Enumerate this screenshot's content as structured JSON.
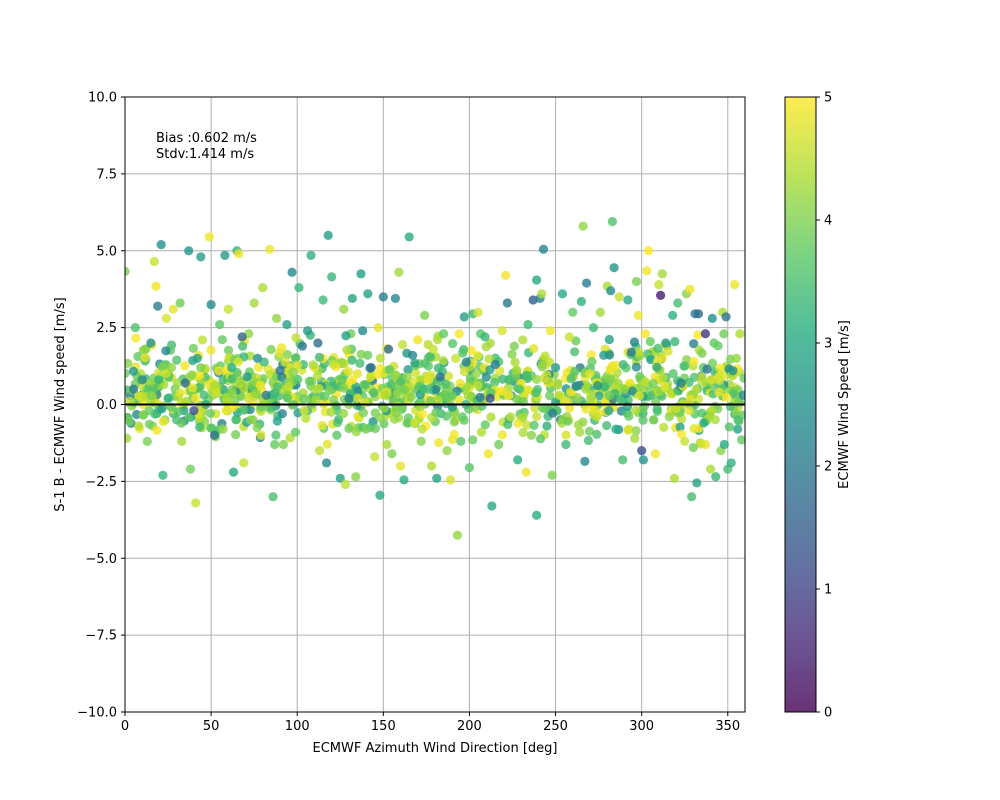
{
  "chart_data": {
    "type": "scatter",
    "xlabel": "ECMWF Azimuth Wind Direction [deg]",
    "ylabel": "S-1 B - ECMWF Wind speed [m/s]",
    "xlim": [
      0,
      360
    ],
    "ylim": [
      -10,
      10
    ],
    "xticks": [
      0,
      50,
      100,
      150,
      200,
      250,
      300,
      350
    ],
    "yticks": [
      -10.0,
      -7.5,
      -5.0,
      -2.5,
      0.0,
      2.5,
      5.0,
      7.5,
      10.0
    ],
    "xtick_labels": [
      "0",
      "50",
      "100",
      "150",
      "200",
      "250",
      "300",
      "350"
    ],
    "ytick_labels": [
      "−10.0",
      "−7.5",
      "−5.0",
      "−2.5",
      "0.0",
      "2.5",
      "5.0",
      "7.5",
      "10.0"
    ],
    "grid": true,
    "reference_line_y": 0,
    "annotation": [
      "Bias :0.602 m/s",
      "Stdv:1.414 m/s"
    ],
    "colorbar": {
      "label": "ECMWF Wind Speed [m/s]",
      "colormap": "viridis",
      "range": [
        0,
        5
      ],
      "ticks": [
        "0",
        "1",
        "2",
        "3",
        "4",
        "5"
      ]
    },
    "points": [
      [
        0,
        4.33,
        4.0
      ],
      [
        1,
        -1.1,
        4.3
      ],
      [
        3,
        0.1,
        4.5
      ],
      [
        5,
        0.5,
        2.1
      ],
      [
        6,
        2.5,
        3.6
      ],
      [
        8,
        -0.7,
        4.4
      ],
      [
        10,
        0.8,
        2.3
      ],
      [
        12,
        1.8,
        4.1
      ],
      [
        14,
        -0.2,
        3.8
      ],
      [
        15,
        2.0,
        2.5
      ],
      [
        17,
        4.65,
        4.6
      ],
      [
        18,
        3.85,
        4.9
      ],
      [
        19,
        3.2,
        2.2
      ],
      [
        21,
        5.2,
        2.5
      ],
      [
        22,
        -2.3,
        3.3
      ],
      [
        24,
        2.8,
        4.7
      ],
      [
        25,
        0.2,
        3.2
      ],
      [
        27,
        1.2,
        4.2
      ],
      [
        28,
        3.1,
        4.8
      ],
      [
        30,
        -0.5,
        3.5
      ],
      [
        32,
        3.3,
        3.9
      ],
      [
        33,
        -1.2,
        4.3
      ],
      [
        35,
        0.7,
        1.8
      ],
      [
        37,
        5.0,
        2.6
      ],
      [
        38,
        -2.1,
        3.9
      ],
      [
        40,
        -0.2,
        1.2
      ],
      [
        41,
        -3.2,
        4.6
      ],
      [
        42,
        1.5,
        2.9
      ],
      [
        44,
        4.8,
        2.8
      ],
      [
        45,
        2.1,
        4.5
      ],
      [
        47,
        0.0,
        3.2
      ],
      [
        49,
        5.45,
        4.9
      ],
      [
        50,
        3.25,
        2.4
      ],
      [
        52,
        -1.0,
        1.9
      ],
      [
        53,
        0.4,
        4.6
      ],
      [
        55,
        2.6,
        3.7
      ],
      [
        57,
        -0.8,
        4.2
      ],
      [
        58,
        4.85,
        2.7
      ],
      [
        60,
        3.1,
        4.6
      ],
      [
        62,
        1.2,
        3.1
      ],
      [
        63,
        -2.2,
        3.0
      ],
      [
        65,
        5.0,
        3.3
      ],
      [
        66,
        4.9,
        4.9
      ],
      [
        68,
        2.2,
        1.6
      ],
      [
        69,
        -1.9,
        4.6
      ],
      [
        71,
        0.9,
        2.7
      ],
      [
        73,
        -0.5,
        4.1
      ],
      [
        75,
        3.3,
        4.3
      ],
      [
        77,
        1.5,
        2.4
      ],
      [
        79,
        -1.0,
        4.7
      ],
      [
        80,
        3.8,
        4.4
      ],
      [
        82,
        0.3,
        2.1
      ],
      [
        84,
        5.05,
        4.9
      ],
      [
        85,
        -0.1,
        3.5
      ],
      [
        86,
        -3.0,
        3.5
      ],
      [
        88,
        2.8,
        4.2
      ],
      [
        90,
        1.1,
        1.9
      ],
      [
        92,
        -1.3,
        4.0
      ],
      [
        94,
        2.6,
        2.9
      ],
      [
        95,
        0.6,
        4.5
      ],
      [
        97,
        4.3,
        2.4
      ],
      [
        99,
        -0.9,
        3.8
      ],
      [
        101,
        3.8,
        3.3
      ],
      [
        103,
        1.9,
        2.0
      ],
      [
        104,
        -0.2,
        4.6
      ],
      [
        106,
        2.4,
        2.7
      ],
      [
        108,
        4.85,
        3.2
      ],
      [
        110,
        0.5,
        4.3
      ],
      [
        112,
        2.0,
        1.8
      ],
      [
        113,
        -1.5,
        4.5
      ],
      [
        115,
        3.4,
        3.4
      ],
      [
        117,
        -1.9,
        2.4
      ],
      [
        118,
        5.5,
        2.8
      ],
      [
        120,
        4.15,
        3.3
      ],
      [
        121,
        1.3,
        4.6
      ],
      [
        123,
        -1.0,
        3.7
      ],
      [
        125,
        -2.4,
        2.9
      ],
      [
        127,
        3.1,
        4.2
      ],
      [
        128,
        -2.6,
        4.5
      ],
      [
        130,
        0.2,
        2.2
      ],
      [
        132,
        3.45,
        2.9
      ],
      [
        134,
        -2.35,
        4.1
      ],
      [
        135,
        1.0,
        4.8
      ],
      [
        137,
        4.25,
        2.8
      ],
      [
        138,
        2.4,
        2.4
      ],
      [
        140,
        -0.8,
        4.0
      ],
      [
        141,
        3.6,
        2.9
      ],
      [
        143,
        1.2,
        1.9
      ],
      [
        145,
        -1.7,
        4.6
      ],
      [
        147,
        2.5,
        4.8
      ],
      [
        148,
        -2.95,
        3.0
      ],
      [
        150,
        3.5,
        2.1
      ],
      [
        151,
        0.3,
        4.4
      ],
      [
        153,
        1.8,
        1.7
      ],
      [
        155,
        -1.6,
        4.0
      ],
      [
        157,
        3.45,
        2.3
      ],
      [
        159,
        4.3,
        4.3
      ],
      [
        160,
        -2.0,
        4.8
      ],
      [
        162,
        -2.45,
        3.1
      ],
      [
        164,
        0.9,
        4.2
      ],
      [
        165,
        5.45,
        3.1
      ],
      [
        167,
        1.6,
        2.3
      ],
      [
        168,
        -0.6,
        4.7
      ],
      [
        170,
        2.1,
        4.9
      ],
      [
        172,
        -1.2,
        4.1
      ],
      [
        174,
        2.9,
        4.0
      ],
      [
        176,
        0.5,
        3.5
      ],
      [
        178,
        -2.0,
        4.4
      ],
      [
        179,
        1.8,
        4.6
      ],
      [
        181,
        -2.4,
        2.9
      ],
      [
        183,
        0.9,
        1.8
      ],
      [
        185,
        2.3,
        3.8
      ],
      [
        187,
        -1.5,
        4.2
      ],
      [
        189,
        -2.45,
        4.7
      ],
      [
        190,
        0.3,
        3.8
      ],
      [
        192,
        1.5,
        4.6
      ],
      [
        193,
        -4.25,
        4.2
      ],
      [
        195,
        -1.2,
        3.7
      ],
      [
        197,
        2.85,
        2.8
      ],
      [
        198,
        0.0,
        3.3
      ],
      [
        200,
        -2.05,
        3.7
      ],
      [
        202,
        2.95,
        3.4
      ],
      [
        204,
        1.0,
        4.2
      ],
      [
        205,
        3.0,
        4.7
      ],
      [
        207,
        -0.9,
        4.4
      ],
      [
        209,
        2.2,
        3.3
      ],
      [
        211,
        -1.6,
        4.9
      ],
      [
        212,
        0.2,
        1.2
      ],
      [
        213,
        -3.3,
        3.0
      ],
      [
        215,
        1.3,
        2.1
      ],
      [
        217,
        -1.3,
        3.9
      ],
      [
        219,
        2.4,
        4.7
      ],
      [
        221,
        4.2,
        4.9
      ],
      [
        222,
        3.3,
        2.0
      ],
      [
        224,
        -0.4,
        4.5
      ],
      [
        226,
        1.9,
        4.0
      ],
      [
        228,
        -1.8,
        3.1
      ],
      [
        229,
        0.5,
        3.6
      ],
      [
        231,
        2.1,
        4.4
      ],
      [
        233,
        -2.2,
        4.9
      ],
      [
        234,
        2.6,
        3.4
      ],
      [
        236,
        -1.0,
        4.1
      ],
      [
        237,
        3.4,
        1.5
      ],
      [
        239,
        4.05,
        3.0
      ],
      [
        239,
        -3.6,
        3.1
      ],
      [
        241,
        3.45,
        2.2
      ],
      [
        242,
        3.6,
        4.4
      ],
      [
        243,
        5.05,
        2.3
      ],
      [
        245,
        -0.7,
        3.2
      ],
      [
        247,
        2.4,
        4.9
      ],
      [
        248,
        -2.3,
        4.0
      ],
      [
        250,
        1.2,
        2.7
      ],
      [
        252,
        0.3,
        4.5
      ],
      [
        254,
        3.6,
        3.0
      ],
      [
        256,
        -1.3,
        3.4
      ],
      [
        258,
        2.2,
        4.6
      ],
      [
        260,
        3.0,
        3.8
      ],
      [
        262,
        0.6,
        2.3
      ],
      [
        264,
        -0.9,
        4.3
      ],
      [
        265,
        3.35,
        3.2
      ],
      [
        266,
        5.8,
        4.2
      ],
      [
        267,
        -1.85,
        2.3
      ],
      [
        268,
        3.95,
        2.1
      ],
      [
        270,
        1.0,
        4.8
      ],
      [
        272,
        2.5,
        3.4
      ],
      [
        274,
        -0.4,
        4.6
      ],
      [
        276,
        3.0,
        4.3
      ],
      [
        278,
        1.6,
        2.7
      ],
      [
        280,
        3.85,
        4.4
      ],
      [
        281,
        -0.2,
        2.9
      ],
      [
        282,
        3.7,
        2.4
      ],
      [
        283,
        5.95,
        3.6
      ],
      [
        284,
        4.45,
        2.6
      ],
      [
        285,
        -0.8,
        3.1
      ],
      [
        287,
        3.5,
        4.6
      ],
      [
        289,
        -1.8,
        3.5
      ],
      [
        290,
        0.5,
        4.2
      ],
      [
        292,
        3.4,
        3.0
      ],
      [
        294,
        1.7,
        2.0
      ],
      [
        296,
        -1.1,
        4.3
      ],
      [
        297,
        4.0,
        4.0
      ],
      [
        298,
        2.9,
        4.9
      ],
      [
        300,
        -1.5,
        1.2
      ],
      [
        301,
        -1.8,
        2.6
      ],
      [
        303,
        4.35,
        4.9
      ],
      [
        304,
        5.0,
        5.0
      ],
      [
        305,
        2.05,
        3.8
      ],
      [
        307,
        -0.5,
        4.0
      ],
      [
        308,
        -1.6,
        4.9
      ],
      [
        310,
        3.9,
        4.6
      ],
      [
        311,
        3.55,
        0.4
      ],
      [
        312,
        4.25,
        4.3
      ],
      [
        314,
        2.0,
        2.7
      ],
      [
        316,
        -0.4,
        4.1
      ],
      [
        318,
        2.9,
        3.2
      ],
      [
        319,
        -2.4,
        4.4
      ],
      [
        321,
        3.3,
        3.5
      ],
      [
        323,
        0.7,
        2.2
      ],
      [
        325,
        -1.2,
        4.6
      ],
      [
        326,
        3.6,
        4.1
      ],
      [
        328,
        3.75,
        4.9
      ],
      [
        329,
        -3.0,
        3.5
      ],
      [
        330,
        -1.4,
        3.9
      ],
      [
        331,
        2.95,
        2.0
      ],
      [
        332,
        -2.55,
        2.9
      ],
      [
        333,
        2.95,
        1.8
      ],
      [
        335,
        0.9,
        4.6
      ],
      [
        336,
        -0.6,
        3.0
      ],
      [
        337,
        2.3,
        0.8
      ],
      [
        338,
        1.15,
        2.0
      ],
      [
        340,
        -2.1,
        4.4
      ],
      [
        341,
        2.8,
        2.5
      ],
      [
        342,
        2.0,
        3.8
      ],
      [
        343,
        -2.35,
        3.3
      ],
      [
        345,
        0.4,
        4.8
      ],
      [
        346,
        -1.5,
        4.1
      ],
      [
        347,
        3.0,
        4.4
      ],
      [
        348,
        -1.3,
        3.0
      ],
      [
        349,
        2.85,
        1.9
      ],
      [
        350,
        -2.1,
        3.5
      ],
      [
        352,
        -1.9,
        3.2
      ],
      [
        353,
        1.1,
        2.6
      ],
      [
        354,
        3.9,
        4.9
      ],
      [
        355,
        1.5,
        4.2
      ],
      [
        356,
        -0.5,
        3.6
      ],
      [
        357,
        2.3,
        4.4
      ],
      [
        358,
        -1.15,
        3.8
      ],
      [
        359,
        0.3,
        2.4
      ]
    ],
    "dense_band": {
      "description": "A large cloud of additional points between y≈-1.5 and y≈2.5 across all directions, mostly colored at 3.5–5 m/s.",
      "x_range": [
        0,
        360
      ],
      "y_range": [
        -1.3,
        2.3
      ],
      "count": 1100,
      "speed_range": [
        2.0,
        5.0
      ]
    }
  }
}
